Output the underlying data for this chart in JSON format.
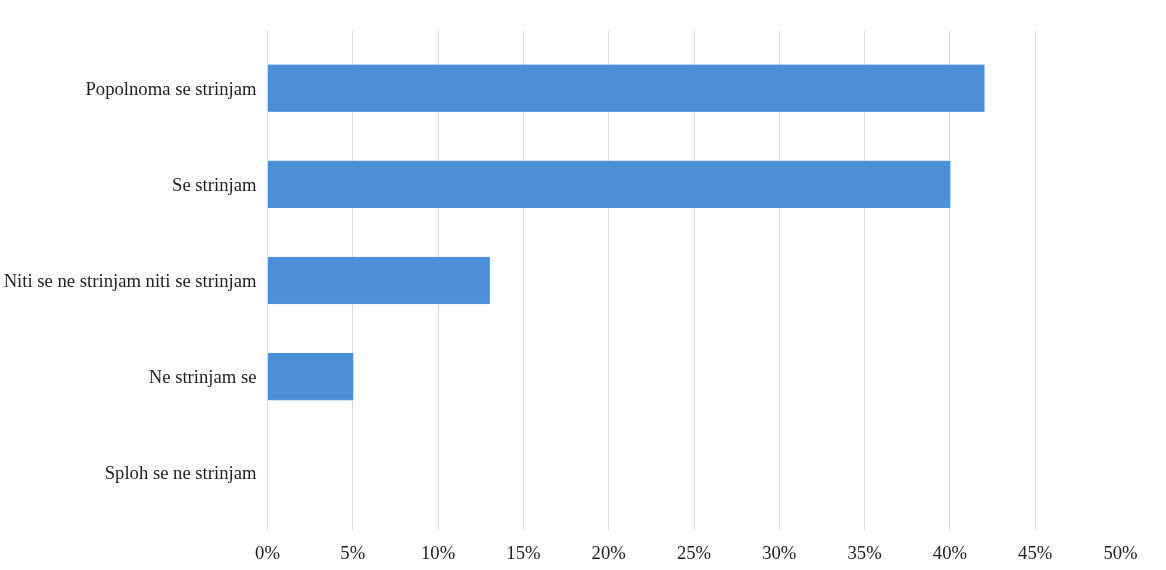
{
  "chart_data": {
    "type": "bar",
    "orientation": "horizontal",
    "categories": [
      "Popolnoma se strinjam",
      "Se strinjam",
      "Niti se ne strinjam niti se strinjam",
      "Ne strinjam se",
      "Sploh se ne strinjam"
    ],
    "values": [
      42,
      40,
      13,
      5,
      0
    ],
    "color": "#4a8fd8",
    "xlim": [
      0,
      50
    ],
    "xticks": [
      {
        "value": 0,
        "label": "0%"
      },
      {
        "value": 5,
        "label": "5%"
      },
      {
        "value": 10,
        "label": "10%"
      },
      {
        "value": 15,
        "label": "15%"
      },
      {
        "value": 20,
        "label": "20%"
      },
      {
        "value": 25,
        "label": "25%"
      },
      {
        "value": 30,
        "label": "30%"
      },
      {
        "value": 35,
        "label": "35%"
      },
      {
        "value": 40,
        "label": "40%"
      },
      {
        "value": 45,
        "label": "45%"
      },
      {
        "value": 50,
        "label": "50%"
      }
    ],
    "grid": "x"
  }
}
